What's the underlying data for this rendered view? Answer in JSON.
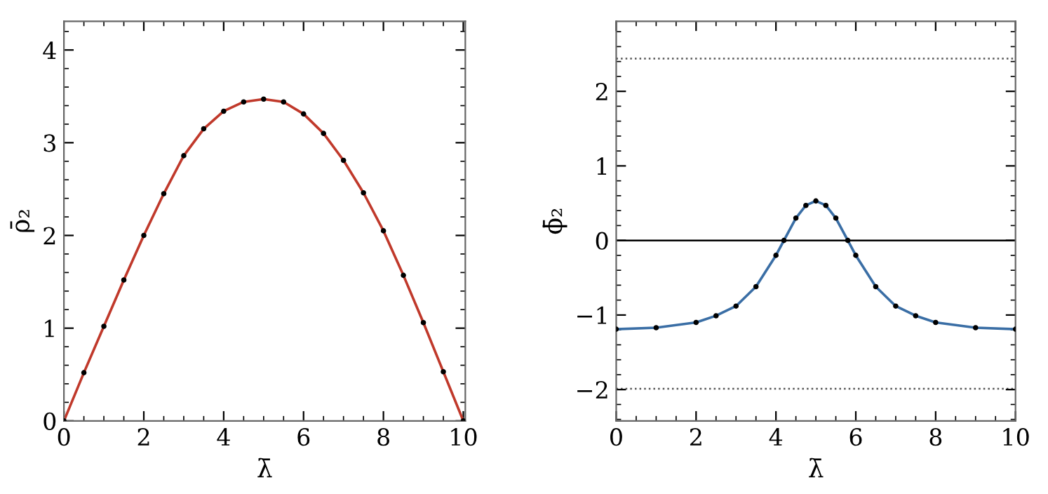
{
  "chart_data": [
    {
      "type": "line",
      "xlabel": "λ̄",
      "ylabel": "ρ̄₂",
      "xlim": [
        0,
        10.05
      ],
      "ylim": [
        0,
        4.31
      ],
      "xticks": [
        0,
        2,
        4,
        6,
        8,
        10
      ],
      "yticks": [
        0,
        1,
        2,
        3,
        4
      ],
      "grid": false,
      "legend": false,
      "series": [
        {
          "type": "line",
          "color": "#c0392b",
          "marker": "none",
          "x": [
            0,
            0.5,
            1,
            1.5,
            2,
            2.5,
            3,
            3.5,
            4,
            4.5,
            5,
            5.5,
            6,
            6.5,
            7,
            7.5,
            8,
            8.5,
            9,
            9.5,
            10
          ],
          "values": [
            0,
            0.52,
            1.02,
            1.52,
            2.0,
            2.45,
            2.86,
            3.15,
            3.34,
            3.44,
            3.47,
            3.44,
            3.31,
            3.1,
            2.81,
            2.46,
            2.05,
            1.57,
            1.06,
            0.53,
            0
          ]
        },
        {
          "type": "scatter",
          "color": "#000000",
          "marker": "circle",
          "x": [
            0,
            0.5,
            1,
            1.5,
            2,
            2.5,
            3,
            3.5,
            4,
            4.5,
            5,
            5.5,
            6,
            6.5,
            7,
            7.5,
            8,
            8.5,
            9,
            9.5,
            10
          ],
          "values": [
            0,
            0.52,
            1.02,
            1.52,
            2.0,
            2.45,
            2.86,
            3.15,
            3.34,
            3.44,
            3.47,
            3.44,
            3.31,
            3.1,
            2.81,
            2.46,
            2.05,
            1.57,
            1.06,
            0.53,
            0
          ]
        }
      ]
    },
    {
      "type": "line",
      "xlabel": "λ̄",
      "ylabel": "ϕ̄₂",
      "xlim": [
        0,
        10
      ],
      "ylim": [
        -2.42,
        2.94
      ],
      "xticks": [
        0,
        2,
        4,
        6,
        8,
        10
      ],
      "yticks": [
        -2,
        -1,
        0,
        1,
        2
      ],
      "grid": false,
      "legend": false,
      "ref_lines": [
        {
          "axis": "y",
          "value": 0,
          "color": "#000000",
          "line_style": "solid"
        },
        {
          "axis": "y",
          "value": 2.44,
          "color": "#555555",
          "line_style": "dotted"
        },
        {
          "axis": "y",
          "value": -1.99,
          "color": "#555555",
          "line_style": "dotted"
        }
      ],
      "series": [
        {
          "type": "line",
          "color": "#3a6ea5",
          "marker": "none",
          "x": [
            0,
            1,
            2,
            2.5,
            3,
            3.5,
            4,
            4.2,
            4.5,
            4.75,
            5,
            5.25,
            5.5,
            5.8,
            6,
            6.5,
            7,
            7.5,
            8,
            9,
            10
          ],
          "values": [
            -1.19,
            -1.17,
            -1.1,
            -1.01,
            -0.88,
            -0.62,
            -0.2,
            0,
            0.3,
            0.47,
            0.53,
            0.47,
            0.3,
            0,
            -0.2,
            -0.62,
            -0.88,
            -1.01,
            -1.1,
            -1.17,
            -1.19
          ]
        },
        {
          "type": "scatter",
          "color": "#000000",
          "marker": "circle",
          "x": [
            0,
            1,
            2,
            2.5,
            3,
            3.5,
            4,
            4.2,
            4.5,
            4.75,
            5,
            5.25,
            5.5,
            5.8,
            6,
            6.5,
            7,
            7.5,
            8,
            9,
            10
          ],
          "values": [
            -1.19,
            -1.17,
            -1.1,
            -1.01,
            -0.88,
            -0.62,
            -0.2,
            0,
            0.3,
            0.47,
            0.53,
            0.47,
            0.3,
            0,
            -0.2,
            -0.62,
            -0.88,
            -1.01,
            -1.1,
            -1.17,
            -1.19
          ]
        }
      ]
    }
  ]
}
